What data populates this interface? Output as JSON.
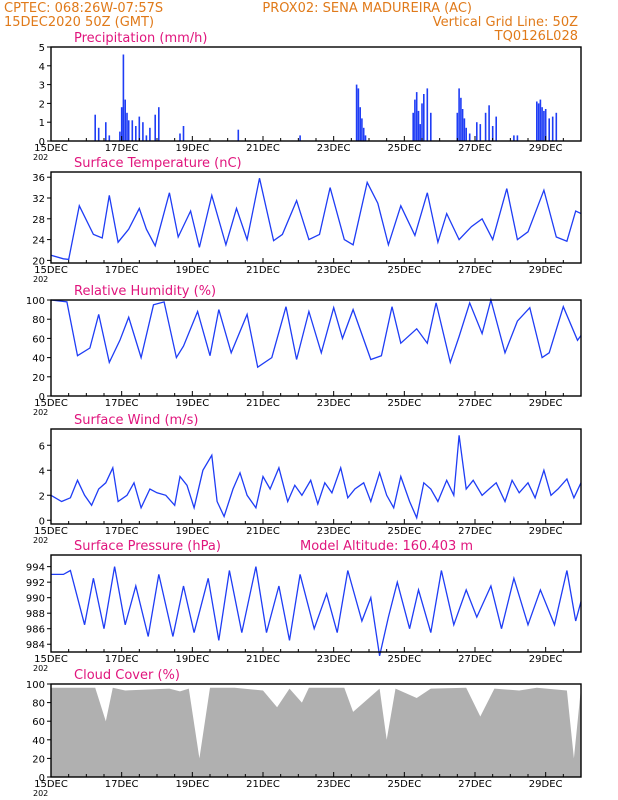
{
  "header": {
    "line1_left": "CPTEC:   068:26W-07:57S",
    "line1_station": "PROX02: SENA MADUREIRA (AC)",
    "line2_left": "15DEC2020 50Z (GMT)",
    "line2_right": "Vertical Grid Line: 50Z",
    "line3_right": "TQ0126L028"
  },
  "x_ticks": [
    "15DEC",
    "17DEC",
    "19DEC",
    "21DEC",
    "23DEC",
    "25DEC",
    "27DEC",
    "29DEC"
  ],
  "x_year_fragment": "202",
  "colors": {
    "series": "#1f3df5",
    "cloud": "#b0b0b0",
    "header": "#e07a1a",
    "title": "#e0157d"
  },
  "chart_data": [
    {
      "type": "bar",
      "title": "Precipitation (mm/h)",
      "x_range_days": [
        0,
        15
      ],
      "ylim": [
        0,
        5
      ],
      "yticks": [
        0,
        1,
        2,
        3,
        4,
        5
      ],
      "grid": false,
      "x": [
        1.25,
        1.35,
        1.55,
        1.65,
        1.95,
        2.0,
        2.05,
        2.1,
        2.15,
        2.2,
        2.3,
        2.4,
        2.5,
        2.6,
        2.7,
        2.8,
        2.95,
        3.05,
        3.65,
        3.75,
        5.3,
        7.05,
        8.65,
        8.7,
        8.75,
        8.8,
        8.85,
        8.9,
        10.25,
        10.3,
        10.35,
        10.4,
        10.45,
        10.5,
        10.55,
        10.65,
        10.75,
        11.5,
        11.55,
        11.6,
        11.65,
        11.7,
        11.75,
        11.85,
        12.05,
        12.15,
        12.3,
        12.4,
        12.5,
        12.6,
        13.1,
        13.2,
        13.75,
        13.8,
        13.85,
        13.9,
        13.95,
        14.0,
        14.1,
        14.2,
        14.3
      ],
      "values": [
        1.4,
        0.7,
        1.0,
        0.3,
        0.5,
        1.8,
        4.6,
        2.2,
        1.5,
        1.1,
        1.1,
        0.8,
        1.3,
        1.0,
        0.3,
        0.7,
        1.4,
        1.8,
        0.4,
        0.8,
        0.6,
        0.3,
        3.0,
        2.8,
        1.8,
        1.2,
        0.7,
        0.3,
        1.5,
        2.2,
        2.6,
        1.6,
        0.9,
        2.0,
        2.5,
        2.8,
        1.5,
        1.5,
        2.8,
        2.3,
        1.7,
        1.2,
        0.7,
        0.4,
        1.0,
        0.9,
        1.5,
        1.9,
        0.8,
        1.3,
        0.3,
        0.3,
        2.1,
        2.0,
        2.2,
        1.8,
        1.6,
        1.7,
        1.2,
        1.3,
        1.5
      ]
    },
    {
      "type": "line",
      "title": "Surface Temperature (nC)",
      "x_range_days": [
        0,
        15
      ],
      "ylim": [
        19.5,
        37
      ],
      "yticks": [
        20,
        24,
        28,
        32,
        36
      ],
      "grid": false,
      "x": [
        0.0,
        0.35,
        0.5,
        0.8,
        1.2,
        1.45,
        1.65,
        1.9,
        2.2,
        2.5,
        2.7,
        2.95,
        3.35,
        3.6,
        3.95,
        4.2,
        4.55,
        4.95,
        5.25,
        5.55,
        5.9,
        6.3,
        6.55,
        6.95,
        7.3,
        7.6,
        7.9,
        8.3,
        8.55,
        8.95,
        9.25,
        9.55,
        9.9,
        10.3,
        10.65,
        10.95,
        11.2,
        11.55,
        11.9,
        12.2,
        12.5,
        12.9,
        13.2,
        13.5,
        13.95,
        14.3,
        14.6,
        14.85,
        15.0
      ],
      "values": [
        21.0,
        20.3,
        20.2,
        30.5,
        25.0,
        24.3,
        32.5,
        23.5,
        26.0,
        30.0,
        26.0,
        22.8,
        33.0,
        24.5,
        29.5,
        22.5,
        32.5,
        23.0,
        30.0,
        24.0,
        35.8,
        23.8,
        25.0,
        31.5,
        24.0,
        25.0,
        34.0,
        24.0,
        23.0,
        35.0,
        31.0,
        23.0,
        30.5,
        24.8,
        33.0,
        23.5,
        29.0,
        24.0,
        26.5,
        28.0,
        24.0,
        33.8,
        24.0,
        25.5,
        33.5,
        24.5,
        23.7,
        29.5,
        29.0
      ]
    },
    {
      "type": "line",
      "title": "Relative Humidity (%)",
      "x_range_days": [
        0,
        15
      ],
      "ylim": [
        0,
        100
      ],
      "yticks": [
        0,
        20,
        40,
        60,
        80,
        100
      ],
      "grid": false,
      "x": [
        0.0,
        0.45,
        0.75,
        1.1,
        1.35,
        1.65,
        1.95,
        2.2,
        2.55,
        2.9,
        3.2,
        3.55,
        3.75,
        4.15,
        4.5,
        4.75,
        5.1,
        5.55,
        5.85,
        6.25,
        6.65,
        6.95,
        7.3,
        7.65,
        8.0,
        8.25,
        8.55,
        9.05,
        9.35,
        9.65,
        9.9,
        10.35,
        10.65,
        10.9,
        11.3,
        11.55,
        11.85,
        12.2,
        12.45,
        12.85,
        13.2,
        13.55,
        13.9,
        14.1,
        14.5,
        14.9,
        15.0
      ],
      "values": [
        100.0,
        98.0,
        42.0,
        50.0,
        85.0,
        35.0,
        58.0,
        82.0,
        40.0,
        95.0,
        98.0,
        40.0,
        52.0,
        88.0,
        42.0,
        90.0,
        45.0,
        85.0,
        30.0,
        40.0,
        93.0,
        38.0,
        88.0,
        45.0,
        92.0,
        60.0,
        90.0,
        38.0,
        42.0,
        93.0,
        55.0,
        70.0,
        55.0,
        97.0,
        35.0,
        62.0,
        97.0,
        65.0,
        100.0,
        45.0,
        78.0,
        92.0,
        40.0,
        45.0,
        93.0,
        58.0,
        63.0
      ]
    },
    {
      "type": "line",
      "title": "Surface Wind (m/s)",
      "x_range_days": [
        0,
        15
      ],
      "ylim": [
        -0.3,
        7.3
      ],
      "yticks": [
        0,
        2,
        4,
        6
      ],
      "grid": false,
      "x": [
        0.0,
        0.3,
        0.55,
        0.75,
        0.95,
        1.15,
        1.35,
        1.55,
        1.75,
        1.9,
        2.15,
        2.35,
        2.55,
        2.8,
        3.0,
        3.25,
        3.5,
        3.65,
        3.85,
        4.05,
        4.3,
        4.55,
        4.7,
        4.9,
        5.15,
        5.35,
        5.55,
        5.8,
        6.0,
        6.2,
        6.45,
        6.7,
        6.9,
        7.1,
        7.35,
        7.55,
        7.75,
        7.95,
        8.2,
        8.4,
        8.6,
        8.85,
        9.05,
        9.3,
        9.5,
        9.7,
        9.9,
        10.15,
        10.35,
        10.55,
        10.75,
        10.95,
        11.2,
        11.4,
        11.55,
        11.75,
        11.95,
        12.2,
        12.4,
        12.6,
        12.85,
        13.05,
        13.25,
        13.5,
        13.7,
        13.95,
        14.15,
        14.35,
        14.6,
        14.8,
        15.0
      ],
      "values": [
        2.0,
        1.5,
        1.8,
        3.2,
        2.0,
        1.2,
        2.5,
        3.0,
        4.2,
        1.5,
        2.0,
        3.0,
        1.0,
        2.5,
        2.2,
        2.0,
        1.2,
        3.5,
        2.8,
        1.0,
        4.0,
        5.2,
        1.5,
        0.3,
        2.5,
        3.8,
        2.0,
        1.0,
        3.5,
        2.5,
        4.2,
        1.5,
        2.8,
        2.0,
        3.2,
        1.3,
        3.0,
        2.2,
        4.2,
        1.8,
        2.5,
        3.0,
        1.5,
        3.8,
        2.0,
        1.0,
        3.5,
        1.5,
        0.2,
        3.0,
        2.5,
        1.5,
        3.2,
        2.0,
        6.8,
        2.5,
        3.2,
        2.0,
        2.5,
        3.0,
        1.5,
        3.2,
        2.2,
        3.0,
        1.8,
        4.0,
        2.0,
        2.5,
        3.3,
        1.8,
        3.0
      ]
    },
    {
      "type": "line",
      "title": "Surface Pressure (hPa)",
      "annotation": "Model Altitude: 160.403 m",
      "x_range_days": [
        0,
        15
      ],
      "ylim": [
        983,
        995.5
      ],
      "yticks": [
        984,
        986,
        988,
        990,
        992,
        994
      ],
      "grid": false,
      "x": [
        0.0,
        0.35,
        0.55,
        0.95,
        1.2,
        1.5,
        1.8,
        2.1,
        2.4,
        2.75,
        3.05,
        3.45,
        3.75,
        4.05,
        4.45,
        4.75,
        5.05,
        5.4,
        5.8,
        6.1,
        6.45,
        6.75,
        7.05,
        7.45,
        7.8,
        8.1,
        8.4,
        8.8,
        9.05,
        9.3,
        9.55,
        9.8,
        10.15,
        10.4,
        10.75,
        11.05,
        11.4,
        11.75,
        12.05,
        12.45,
        12.75,
        13.1,
        13.5,
        13.85,
        14.25,
        14.6,
        14.85,
        15.0
      ],
      "values": [
        993.0,
        993.0,
        993.5,
        986.5,
        992.5,
        986.0,
        994.0,
        986.5,
        991.5,
        985.0,
        993.0,
        985.0,
        991.5,
        985.5,
        992.5,
        984.5,
        993.5,
        985.5,
        994.0,
        985.5,
        991.5,
        984.5,
        993.0,
        986.0,
        990.5,
        985.5,
        993.5,
        987.0,
        990.0,
        982.5,
        987.5,
        992.0,
        986.0,
        991.0,
        985.5,
        993.5,
        986.5,
        991.0,
        987.5,
        991.5,
        986.0,
        992.5,
        986.5,
        991.0,
        986.5,
        993.5,
        987.0,
        989.5
      ]
    },
    {
      "type": "area",
      "title": "Cloud Cover (%)",
      "x_range_days": [
        0,
        15
      ],
      "ylim": [
        0,
        100
      ],
      "yticks": [
        0,
        20,
        40,
        60,
        80,
        100
      ],
      "grid": false,
      "x": [
        0.0,
        1.25,
        1.55,
        1.75,
        2.1,
        3.35,
        3.65,
        3.9,
        4.2,
        4.5,
        5.2,
        6.0,
        6.4,
        6.75,
        7.1,
        7.3,
        8.3,
        8.55,
        9.3,
        9.5,
        9.75,
        10.35,
        10.75,
        11.75,
        12.15,
        12.55,
        13.25,
        13.75,
        14.6,
        14.8,
        15.0
      ],
      "values": [
        96.0,
        96.0,
        60.0,
        96.0,
        93.0,
        95.0,
        92.0,
        95.0,
        20.0,
        96.0,
        96.0,
        93.0,
        75.0,
        95.0,
        80.0,
        96.0,
        96.0,
        70.0,
        95.0,
        40.0,
        95.0,
        85.0,
        95.0,
        96.0,
        65.0,
        95.0,
        93.0,
        96.0,
        93.0,
        20.0,
        96.0
      ]
    }
  ]
}
